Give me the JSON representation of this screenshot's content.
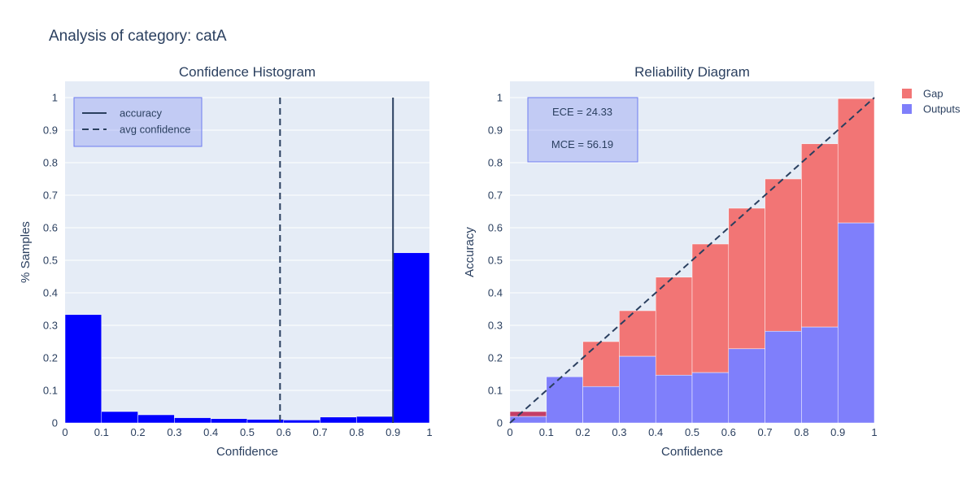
{
  "figure": {
    "title": "Analysis of category: catA",
    "colors": {
      "plot_bg": "#e5ecf6",
      "grid": "#ffffff",
      "text": "#2a3f5f",
      "hist_bar": "#0000ff",
      "outputs": "#7f7ffb",
      "gap": "#f27575",
      "gap_overlap": "#c43e68",
      "line": "#2a3f5f",
      "box_fill": "rgba(111,125,240,0.3)",
      "box_border": "#6f7df0"
    }
  },
  "chart_data": [
    {
      "type": "bar",
      "title": "Confidence Histogram",
      "xlabel": "Confidence",
      "ylabel": "% Samples",
      "xlim": [
        0,
        1
      ],
      "ylim": [
        0,
        1.05
      ],
      "xticks": [
        "0",
        "0.1",
        "0.2",
        "0.3",
        "0.4",
        "0.5",
        "0.6",
        "0.7",
        "0.8",
        "0.9",
        "1"
      ],
      "yticks": [
        "0",
        "0.1",
        "0.2",
        "0.3",
        "0.4",
        "0.5",
        "0.6",
        "0.7",
        "0.8",
        "0.9",
        "1"
      ],
      "bins": [
        0.05,
        0.15,
        0.25,
        0.35,
        0.45,
        0.55,
        0.65,
        0.75,
        0.85,
        0.95
      ],
      "values": [
        0.333,
        0.035,
        0.025,
        0.016,
        0.013,
        0.011,
        0.009,
        0.018,
        0.02,
        0.523
      ],
      "lines": [
        {
          "name": "accuracy",
          "x": 0.9,
          "style": "solid"
        },
        {
          "name": "avg confidence",
          "x": 0.59,
          "style": "dash"
        }
      ],
      "legend": [
        "accuracy",
        "avg confidence"
      ],
      "grid": true,
      "legend_position": "top-left"
    },
    {
      "type": "bar",
      "title": "Reliability Diagram",
      "xlabel": "Confidence",
      "ylabel": "Accuracy",
      "xlim": [
        0,
        1
      ],
      "ylim": [
        0,
        1.05
      ],
      "xticks": [
        "0",
        "0.1",
        "0.2",
        "0.3",
        "0.4",
        "0.5",
        "0.6",
        "0.7",
        "0.8",
        "0.9",
        "1"
      ],
      "yticks": [
        "0",
        "0.1",
        "0.2",
        "0.3",
        "0.4",
        "0.5",
        "0.6",
        "0.7",
        "0.8",
        "0.9",
        "1"
      ],
      "bins": [
        0.05,
        0.15,
        0.25,
        0.35,
        0.45,
        0.55,
        0.65,
        0.75,
        0.85,
        0.95
      ],
      "series": [
        {
          "name": "Outputs",
          "values": [
            0.02,
            0.142,
            0.112,
            0.205,
            0.147,
            0.155,
            0.228,
            0.282,
            0.295,
            0.615
          ]
        },
        {
          "name": "Gap",
          "base": [
            0.02,
            0.142,
            0.112,
            0.205,
            0.147,
            0.155,
            0.228,
            0.282,
            0.295,
            0.615
          ],
          "top": [
            0.035,
            0.142,
            0.25,
            0.345,
            0.448,
            0.55,
            0.66,
            0.75,
            0.858,
            0.997
          ]
        }
      ],
      "diagonal": true,
      "annotations": [
        "ECE = 24.33",
        "MCE = 56.19"
      ],
      "legend": [
        "Gap",
        "Outputs"
      ],
      "grid": true,
      "legend_position": "top-right"
    }
  ]
}
